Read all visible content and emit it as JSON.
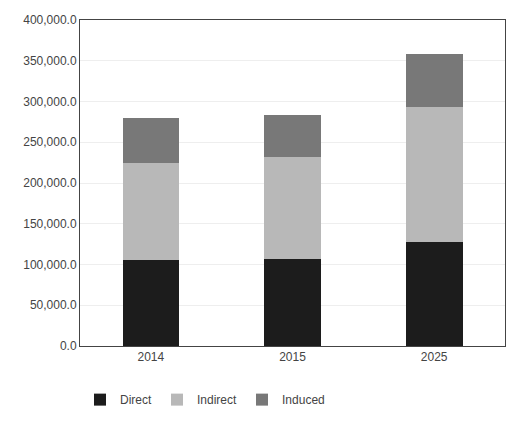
{
  "chart_data": {
    "type": "bar",
    "stacked": true,
    "categories": [
      "2014",
      "2015",
      "2025"
    ],
    "series": [
      {
        "name": "Direct",
        "color": "#1c1c1c",
        "values": [
          105000,
          107000,
          128000
        ]
      },
      {
        "name": "Indirect",
        "color": "#b8b8b8",
        "values": [
          120000,
          125000,
          165000
        ]
      },
      {
        "name": "Induced",
        "color": "#787878",
        "values": [
          55000,
          52000,
          65000
        ]
      }
    ],
    "ylim": [
      0,
      400000
    ],
    "yticks": [
      {
        "value": 0,
        "label": "0.0"
      },
      {
        "value": 50000,
        "label": "50,000.0"
      },
      {
        "value": 100000,
        "label": "100,000.0"
      },
      {
        "value": 150000,
        "label": "150,000.0"
      },
      {
        "value": 200000,
        "label": "200,000.0"
      },
      {
        "value": 250000,
        "label": "250,000.0"
      },
      {
        "value": 300000,
        "label": "300,000.0"
      },
      {
        "value": 350000,
        "label": "350,000.0"
      },
      {
        "value": 400000,
        "label": "400,000.0"
      }
    ],
    "grid": true,
    "legend": "lower left"
  }
}
